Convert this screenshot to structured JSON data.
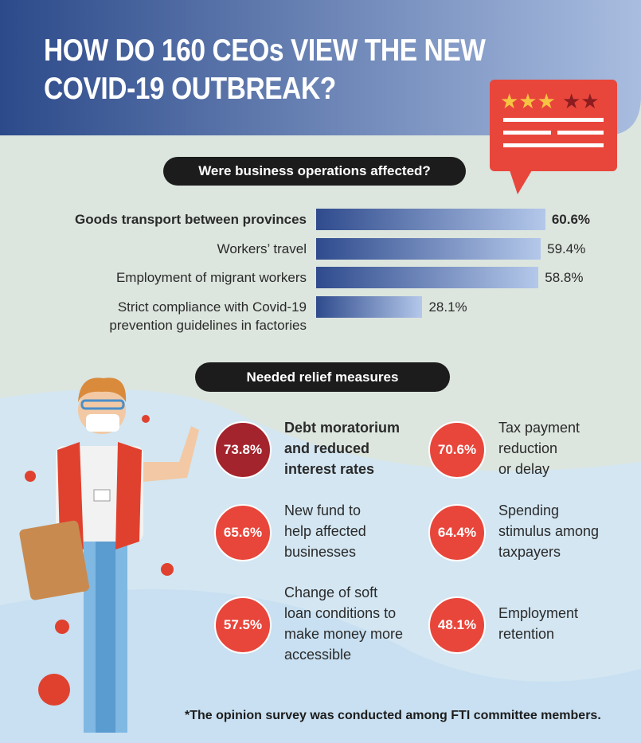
{
  "title": "HOW DO 160 CEOs VIEW THE NEW\nCOVID-19 OUTBREAK?",
  "chart_data": [
    {
      "type": "bar",
      "orientation": "horizontal",
      "title": "Were business operations affected?",
      "categories": [
        "Goods transport between provinces",
        "Workers’ travel",
        "Employment of migrant workers",
        "Strict compliance with Covid-19\nprevention guidelines in factories"
      ],
      "values": [
        60.6,
        59.4,
        58.8,
        28.1
      ],
      "value_labels": [
        "60.6%",
        "59.4%",
        "58.8%",
        "28.1%"
      ],
      "highlight": 0,
      "color": "#2f4b8d"
    },
    {
      "type": "badge",
      "title": "Needed relief measures",
      "categories": [
        "Debt moratorium\nand reduced\ninterest rates",
        "Tax payment\nreduction\nor delay",
        "New fund to\nhelp affected\nbusinesses",
        "Spending\nstimulus among\ntaxpayers",
        "Change of soft\nloan conditions to\nmake money more\naccessible",
        "Employment\nretention"
      ],
      "values": [
        73.8,
        70.6,
        65.6,
        64.4,
        57.5,
        48.1
      ],
      "value_labels": [
        "73.8%",
        "70.6%",
        "65.6%",
        "64.4%",
        "57.5%",
        "48.1%"
      ],
      "highlight": 0,
      "color": "#e8463b",
      "highlight_color": "#a3242d"
    }
  ],
  "footnote": "*The opinion survey was conducted among FTI committee members."
}
